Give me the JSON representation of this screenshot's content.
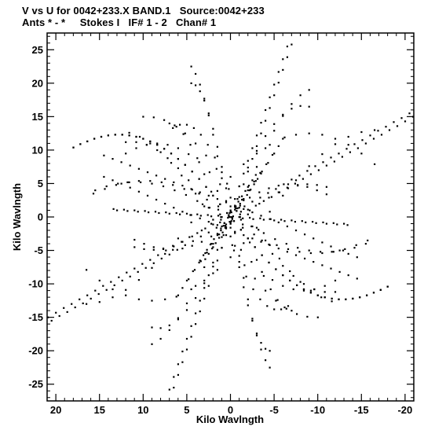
{
  "header": {
    "line1": "V vs U for 0042+233.X BAND.1   Source:0042+233",
    "line2": "Ants * - *     Stokes I   IF# 1 - 2   Chan# 1"
  },
  "chart_data": {
    "type": "scatter",
    "title": "V vs U for 0042+233.X BAND.1   Source:0042+233",
    "subtitle": "Ants * - *     Stokes I   IF# 1 - 2   Chan# 1",
    "xlabel": "Kilo Wavlngth",
    "ylabel": "Kilo Wavlngth",
    "xlim": [
      21,
      -21
    ],
    "ylim": [
      -27.5,
      27.5
    ],
    "x_reversed": true,
    "grid": false,
    "xticks": [
      20,
      15,
      10,
      5,
      0,
      -5,
      -10,
      -15,
      -20
    ],
    "yticks": [
      25,
      20,
      15,
      10,
      5,
      0,
      -5,
      -10,
      -15,
      -20,
      -25
    ],
    "xtick_labels": [
      "20",
      "15",
      "10",
      "5",
      "0",
      "-5",
      "-10",
      "-15",
      "-20"
    ],
    "ytick_labels": [
      "25",
      "20",
      "15",
      "10",
      "5",
      "0",
      "-5",
      "-10",
      "-15",
      "-20",
      "-25"
    ],
    "marker_color": "#000000",
    "series": [
      {
        "x": [
          20.5,
          19.6,
          18.7,
          17.8,
          16.9,
          16.0,
          15.1,
          14.2,
          13.3,
          12.4,
          11.5,
          10.6,
          9.7,
          8.8,
          7.9,
          7.0,
          6.1,
          5.2,
          4.3,
          3.4,
          2.5,
          1.6,
          0.7,
          -0.2,
          -1.1,
          -2.0,
          -2.9,
          -3.8,
          -4.7,
          -5.6,
          -6.5,
          -7.4,
          -8.3,
          -9.2,
          -10.1,
          -11.0,
          -11.9,
          -12.8,
          -13.7,
          -14.6,
          -15.5,
          -16.4,
          -17.3,
          -18.2,
          -19.1,
          -20.0,
          -20.9
        ],
        "y": [
          -15.5,
          -14.8,
          -14.2,
          -13.5,
          -12.9,
          -12.2,
          -11.5,
          -10.9,
          -10.2,
          -9.5,
          -8.9,
          -8.2,
          -7.6,
          -6.9,
          -6.2,
          -5.6,
          -4.9,
          -4.2,
          -3.6,
          -2.9,
          -2.3,
          -1.6,
          -0.9,
          -0.3,
          0.4,
          1.1,
          1.7,
          2.4,
          3.0,
          3.7,
          4.4,
          5.0,
          5.7,
          6.4,
          7.0,
          7.7,
          8.3,
          9.0,
          9.7,
          10.3,
          11.0,
          11.7,
          12.3,
          13.0,
          13.6,
          14.3,
          15.0
        ]
      },
      {
        "x": [
          18.0,
          17.2,
          16.4,
          15.6,
          14.8,
          14.0,
          13.2,
          12.4,
          11.6,
          10.8,
          10.0,
          9.2,
          8.4,
          7.6,
          6.8,
          6.0,
          5.2,
          4.4,
          3.6,
          2.8,
          2.0,
          1.2,
          0.4,
          -0.4,
          -1.2,
          -2.0,
          -2.8,
          -3.6,
          -4.4,
          -5.2,
          -6.0,
          -6.8,
          -7.6,
          -8.4,
          -9.2,
          -10.0,
          -10.8,
          -11.6,
          -12.4,
          -13.2,
          -14.0,
          -14.8,
          -15.6,
          -16.4,
          -17.2,
          -18.0
        ],
        "y": [
          10.4,
          10.9,
          11.3,
          11.7,
          12.0,
          12.2,
          12.3,
          12.3,
          12.2,
          12.0,
          11.7,
          11.3,
          10.8,
          10.2,
          9.5,
          8.7,
          7.8,
          6.8,
          5.7,
          4.5,
          3.2,
          1.9,
          0.6,
          -0.6,
          -1.9,
          -3.2,
          -4.5,
          -5.7,
          -6.8,
          -7.8,
          -8.7,
          -9.5,
          -10.2,
          -10.8,
          -11.3,
          -11.7,
          -12.0,
          -12.2,
          -12.3,
          -12.3,
          -12.2,
          -12.0,
          -11.7,
          -11.3,
          -10.9,
          -10.4
        ]
      },
      {
        "x": [
          6.5,
          6.0,
          5.5,
          5.0,
          4.5,
          4.0,
          3.5,
          3.0,
          2.5,
          2.0,
          1.5,
          1.0,
          0.5,
          0.0,
          -0.5,
          -1.0,
          -1.5,
          -2.0,
          -2.5,
          -3.0,
          -3.5,
          -4.0,
          -4.5,
          -5.0,
          -5.5,
          -6.0,
          -6.5,
          -7.0
        ],
        "y": [
          -25.5,
          -23.6,
          -21.7,
          -19.8,
          -17.9,
          -16.0,
          -14.1,
          -12.2,
          -10.3,
          -8.4,
          -6.5,
          -4.6,
          -2.7,
          -0.8,
          1.1,
          3.0,
          4.9,
          6.8,
          8.7,
          10.6,
          12.5,
          14.4,
          16.3,
          18.2,
          20.1,
          22.0,
          23.9,
          25.8
        ]
      },
      {
        "x": [
          5.0,
          4.3,
          3.6,
          2.9,
          2.2,
          1.5,
          0.8,
          0.1,
          -0.6,
          -1.3,
          -2.0,
          -2.7,
          -3.4,
          -4.1,
          -4.8,
          -5.5,
          -6.2
        ],
        "y": [
          -9.5,
          -8.1,
          -6.8,
          -5.4,
          -4.0,
          -2.7,
          -1.3,
          0.0,
          1.3,
          2.6,
          4.0,
          5.3,
          6.6,
          7.9,
          9.3,
          10.6,
          11.9
        ]
      },
      {
        "x": [
          13.0,
          11.8,
          10.6,
          9.4,
          8.2,
          7.0,
          5.8,
          4.6,
          3.4,
          2.2,
          1.0,
          -0.2,
          -1.4,
          -2.6,
          -3.8,
          -5.0,
          -6.2,
          -7.4,
          -8.6,
          -9.8,
          -11.0,
          -12.2,
          -13.4
        ],
        "y": [
          1.0,
          0.9,
          0.8,
          0.7,
          0.6,
          0.5,
          0.4,
          0.3,
          0.2,
          0.1,
          0.0,
          -0.1,
          -0.2,
          -0.3,
          -0.4,
          -0.5,
          -0.6,
          -0.7,
          -0.8,
          -0.9,
          -1.0,
          -1.1,
          -1.2
        ]
      },
      {
        "x": [
          16.5,
          15.0,
          13.5,
          12.0,
          10.5,
          9.0,
          7.5,
          6.0,
          4.5,
          3.0,
          1.5,
          0.0,
          -1.5,
          -3.0,
          -4.5,
          -6.0,
          -7.5,
          -9.0,
          -10.5,
          -12.0,
          -13.5,
          -15.0,
          -16.5
        ],
        "y": [
          -13.0,
          -12.7,
          -12.0,
          -10.9,
          -9.4,
          -7.6,
          -5.5,
          -3.2,
          -0.8,
          1.6,
          3.9,
          6.0,
          7.9,
          9.5,
          10.8,
          11.7,
          12.3,
          12.5,
          12.3,
          11.7,
          10.8,
          9.5,
          7.9
        ]
      },
      {
        "x": [
          12.0,
          10.8,
          9.6,
          8.4,
          7.2,
          6.0,
          4.8,
          3.6,
          2.4,
          1.2,
          0.0,
          -1.2,
          -2.4,
          -3.6,
          -4.8,
          -6.0,
          -7.2,
          -8.4,
          -9.6,
          -10.8,
          -12.0
        ],
        "y": [
          9.5,
          10.3,
          10.8,
          11.0,
          10.8,
          10.3,
          9.4,
          8.2,
          6.7,
          4.9,
          2.9,
          0.8,
          -1.4,
          -3.5,
          -5.5,
          -7.3,
          -8.8,
          -10.0,
          -10.8,
          -11.2,
          -11.2
        ]
      },
      {
        "x": [
          9.0,
          8.0,
          7.0,
          6.0,
          5.0,
          4.0,
          3.0,
          2.0,
          1.0,
          0.0,
          -1.0,
          -2.0,
          -3.0,
          -4.0,
          -5.0,
          -6.0,
          -7.0,
          -8.0,
          -9.0
        ],
        "y": [
          -19.0,
          -18.2,
          -16.9,
          -15.1,
          -12.9,
          -10.3,
          -7.5,
          -4.5,
          -1.4,
          1.6,
          4.6,
          7.4,
          9.9,
          12.1,
          13.9,
          15.3,
          16.2,
          16.6,
          16.5
        ]
      },
      {
        "x": [
          -7.0,
          -6.2,
          -5.4,
          -4.6,
          -3.8,
          -3.0,
          -2.2,
          -1.4,
          -0.6,
          0.2,
          1.0,
          1.8,
          2.6,
          3.4,
          4.2,
          5.0,
          5.8,
          6.6
        ],
        "y": [
          -14.0,
          -13.5,
          -12.4,
          -10.8,
          -8.8,
          -6.4,
          -3.8,
          -1.1,
          1.6,
          4.2,
          6.7,
          8.9,
          10.8,
          12.3,
          13.3,
          13.8,
          13.8,
          13.3
        ]
      },
      {
        "x": [
          -14.5,
          -13.5,
          -12.5,
          -11.5,
          -10.5,
          -9.5,
          -8.5,
          -7.5,
          -6.5,
          -5.5,
          -4.5,
          -3.5,
          -2.5,
          -1.5,
          -0.5,
          0.5,
          1.5,
          2.5,
          3.5,
          4.5,
          5.5,
          6.5,
          7.5,
          8.5,
          9.5,
          10.5,
          11.5,
          12.5,
          13.5,
          14.5
        ],
        "y": [
          -6.0,
          -5.5,
          -5.0,
          -4.4,
          -3.8,
          -3.2,
          -2.6,
          -2.0,
          -1.4,
          -0.8,
          -0.3,
          0.2,
          0.7,
          1.2,
          1.7,
          2.2,
          2.7,
          3.2,
          3.7,
          4.2,
          4.7,
          5.2,
          5.7,
          6.2,
          6.7,
          7.2,
          7.7,
          8.2,
          8.7,
          9.2
        ]
      },
      {
        "x": [
          -10.0,
          -8.8,
          -7.6,
          -6.4,
          -5.2,
          -4.0,
          -2.8,
          -1.6,
          -0.4,
          0.8,
          2.0,
          3.2,
          4.4,
          5.6,
          6.8,
          8.0,
          9.2,
          10.4,
          11.6
        ],
        "y": [
          -15.0,
          -14.9,
          -14.5,
          -13.7,
          -12.5,
          -11.0,
          -9.2,
          -7.2,
          -5.0,
          -2.7,
          -0.4,
          1.9,
          4.1,
          6.2,
          8.1,
          9.7,
          11.0,
          12.0,
          12.6
        ]
      },
      {
        "x": [
          11.0,
          9.9,
          8.8,
          7.7,
          6.6,
          5.5,
          4.4,
          3.3,
          2.2,
          1.1,
          0.0,
          -1.1,
          -2.2,
          -3.3,
          -4.4,
          -5.5,
          -6.6,
          -7.7,
          -8.8,
          -9.9,
          -11.0
        ],
        "y": [
          -4.5,
          -4.8,
          -4.9,
          -4.7,
          -4.3,
          -3.7,
          -2.9,
          -2.0,
          -1.0,
          0.0,
          1.0,
          2.0,
          2.9,
          3.7,
          4.3,
          4.7,
          4.9,
          4.8,
          4.5,
          4.0,
          3.4
        ]
      },
      {
        "x": [
          3.5,
          3.1,
          2.7,
          2.3,
          1.9,
          1.5,
          1.1,
          0.7,
          0.3,
          -0.1,
          -0.5,
          -0.9,
          -1.3,
          -1.7,
          -2.1,
          -2.5,
          -2.9
        ],
        "y": [
          -6.5,
          -5.7,
          -4.9,
          -4.1,
          -3.3,
          -2.5,
          -1.7,
          -0.9,
          -0.1,
          0.7,
          1.5,
          2.3,
          3.1,
          3.9,
          4.7,
          5.5,
          6.3
        ]
      },
      {
        "x": [
          15.5,
          14.2,
          12.9,
          11.6,
          10.3,
          9.0,
          7.7,
          6.4,
          5.1,
          3.8,
          2.5,
          1.2,
          -0.1,
          -1.4,
          -2.7,
          -4.0,
          -5.3,
          -6.6,
          -7.9,
          -9.2,
          -10.5,
          -11.8,
          -13.1,
          -14.4,
          -15.7
        ],
        "y": [
          4.0,
          4.6,
          5.0,
          5.2,
          5.2,
          5.0,
          4.6,
          4.0,
          3.3,
          2.4,
          1.4,
          0.4,
          -0.6,
          -1.6,
          -2.6,
          -3.5,
          -4.2,
          -4.8,
          -5.2,
          -5.4,
          -5.4,
          -5.2,
          -4.8,
          -4.2,
          -3.5
        ]
      },
      {
        "x": [
          -4.5,
          -4.0,
          -3.5,
          -3.0,
          -2.5,
          -2.0,
          -1.5,
          -1.0,
          -0.5,
          0.0,
          0.5,
          1.0,
          1.5,
          2.0,
          2.5,
          3.0,
          3.5,
          4.0,
          4.5
        ],
        "y": [
          -22.5,
          -21.4,
          -19.8,
          -17.7,
          -15.2,
          -12.3,
          -9.1,
          -5.8,
          -2.4,
          1.0,
          4.3,
          7.5,
          10.5,
          13.2,
          15.5,
          17.4,
          18.8,
          19.7,
          20.0
        ]
      }
    ]
  }
}
